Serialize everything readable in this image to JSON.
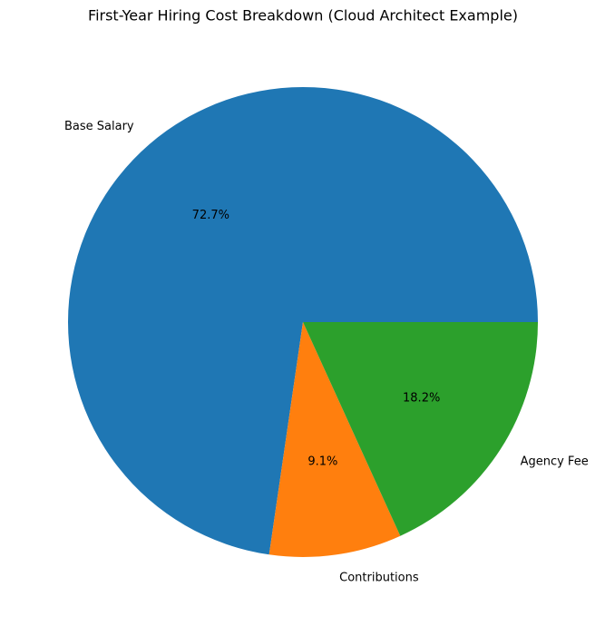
{
  "chart_data": {
    "type": "pie",
    "title": "First-Year Hiring Cost Breakdown (Cloud Architect Example)",
    "categories": [
      "Base Salary",
      "Contributions",
      "Agency Fee"
    ],
    "values": [
      72.7,
      9.1,
      18.2
    ],
    "value_labels": [
      "72.7%",
      "9.1%",
      "18.2%"
    ],
    "colors": [
      "#1f77b4",
      "#ff7f0e",
      "#2ca02c"
    ]
  }
}
